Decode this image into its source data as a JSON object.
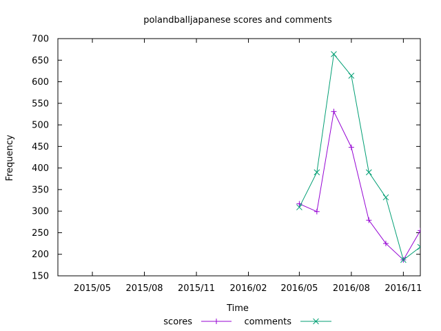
{
  "chart_data": {
    "type": "line",
    "title": "polandballjapanese scores and comments",
    "xlabel": "Time",
    "ylabel": "Frequency",
    "ylim": [
      150,
      700
    ],
    "y_ticks": [
      150,
      200,
      250,
      300,
      350,
      400,
      450,
      500,
      550,
      600,
      650,
      700
    ],
    "xlim": [
      "2015-03-01",
      "2016-12-01"
    ],
    "x_ticks": [
      {
        "date": "2015-05-01",
        "label": "2015/05"
      },
      {
        "date": "2015-08-01",
        "label": "2015/08"
      },
      {
        "date": "2015-11-01",
        "label": "2015/11"
      },
      {
        "date": "2016-02-01",
        "label": "2016/02"
      },
      {
        "date": "2016-05-01",
        "label": "2016/05"
      },
      {
        "date": "2016-08-01",
        "label": "2016/08"
      },
      {
        "date": "2016-11-01",
        "label": "2016/11"
      }
    ],
    "x": [
      "2016-05-01",
      "2016-06-01",
      "2016-07-01",
      "2016-08-01",
      "2016-09-01",
      "2016-10-01",
      "2016-11-01",
      "2016-12-01"
    ],
    "series": [
      {
        "name": "scores",
        "color": "#9400d3",
        "marker": "plus",
        "values": [
          317,
          299,
          531,
          448,
          279,
          225,
          187,
          255
        ]
      },
      {
        "name": "comments",
        "color": "#009e73",
        "marker": "cross",
        "values": [
          309,
          390,
          664,
          614,
          390,
          332,
          187,
          217
        ]
      }
    ],
    "legend_position": "bottom-center",
    "grid": false
  }
}
